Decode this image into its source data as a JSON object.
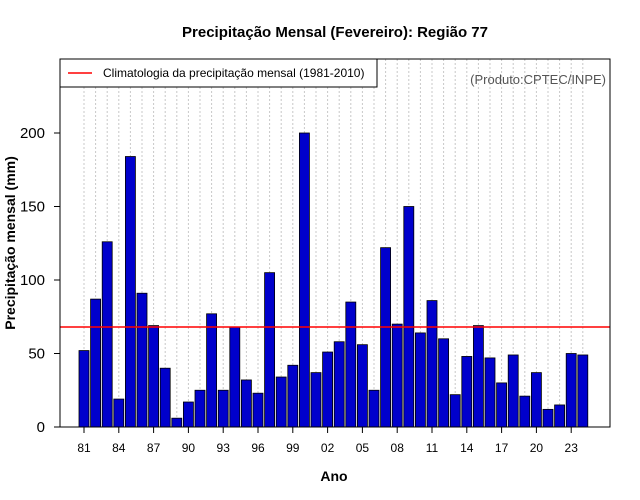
{
  "chart_data": {
    "type": "bar",
    "title": "Precipitação Mensal (Fevereiro): Região 77",
    "xlabel": "Ano",
    "ylabel": "Precipitação mensal (mm)",
    "source_note": "(Produto:CPTEC/INPE)",
    "legend": {
      "label": "Climatologia da precipitação mensal (1981-2010)",
      "placement": "top-left"
    },
    "climatology": 68,
    "ylim": [
      0,
      240
    ],
    "yticks": [
      0,
      50,
      100,
      150,
      200
    ],
    "x_tick_labels": [
      "81",
      "84",
      "87",
      "90",
      "93",
      "96",
      "99",
      "02",
      "05",
      "08",
      "11",
      "14",
      "17",
      "20",
      "23"
    ],
    "categories": [
      "1981",
      "1982",
      "1983",
      "1984",
      "1985",
      "1986",
      "1987",
      "1988",
      "1989",
      "1990",
      "1991",
      "1992",
      "1993",
      "1994",
      "1995",
      "1996",
      "1997",
      "1998",
      "1999",
      "2000",
      "2001",
      "2002",
      "2003",
      "2004",
      "2005",
      "2006",
      "2007",
      "2008",
      "2009",
      "2010",
      "2011",
      "2012",
      "2013",
      "2014",
      "2015",
      "2016",
      "2017",
      "2018",
      "2019",
      "2020",
      "2021",
      "2022",
      "2023",
      "2024"
    ],
    "values": [
      52,
      87,
      126,
      19,
      184,
      91,
      69,
      40,
      6,
      17,
      25,
      77,
      25,
      68,
      32,
      23,
      105,
      34,
      42,
      200,
      37,
      51,
      58,
      85,
      56,
      25,
      122,
      70,
      150,
      64,
      86,
      60,
      22,
      48,
      69,
      47,
      30,
      49,
      21,
      37,
      12,
      15,
      50,
      49
    ],
    "grid": true,
    "colors": {
      "bar_fill": "#0000cc",
      "bar_stroke": "#000000",
      "climatology_line": "#ff0000",
      "grid": "#c8c8c8"
    }
  }
}
